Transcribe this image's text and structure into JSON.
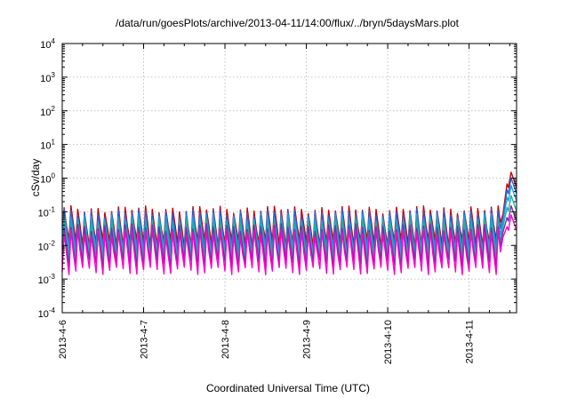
{
  "chart_data": {
    "type": "line",
    "title": "/data/run/goesPlots/archive/2013-04-11/14:00/flux/../bryn/5daysMars.plot",
    "xlabel": "Coordinated Universal Time (UTC)",
    "ylabel": "cSv/day",
    "yscale": "log",
    "ylim": [
      0.0001,
      10000
    ],
    "y_ticks": [
      {
        "base": "10",
        "exp": "-4",
        "value": 0.0001
      },
      {
        "base": "10",
        "exp": "-3",
        "value": 0.001
      },
      {
        "base": "10",
        "exp": "-2",
        "value": 0.01
      },
      {
        "base": "10",
        "exp": "-1",
        "value": 0.1
      },
      {
        "base": "10",
        "exp": "0",
        "value": 1
      },
      {
        "base": "10",
        "exp": "1",
        "value": 10
      },
      {
        "base": "10",
        "exp": "2",
        "value": 100
      },
      {
        "base": "10",
        "exp": "3",
        "value": 1000
      },
      {
        "base": "10",
        "exp": "4",
        "value": 10000
      }
    ],
    "xlim": [
      "2013-04-06 00:00",
      "2013-04-11 14:00"
    ],
    "x_ticks": [
      "2013-4-6",
      "2013-4-7",
      "2013-4-8",
      "2013-4-9",
      "2013-4-10",
      "2013-4-11"
    ],
    "grid": true,
    "legend": "none",
    "pattern": {
      "cycles_per_day": 12,
      "event_start": "2013-04-11 10:00",
      "event_peak_values": [
        1.5,
        1.0,
        0.6,
        0.3,
        0.15,
        0.08
      ]
    },
    "series": [
      {
        "color": "#cc0000",
        "peak": 0.12,
        "trough": 0.012
      },
      {
        "color": "#3060d0",
        "peak": 0.095,
        "trough": 0.008
      },
      {
        "color": "#1aa0e0",
        "peak": 0.07,
        "trough": 0.006
      },
      {
        "color": "#20b0a0",
        "peak": 0.05,
        "trough": 0.0045
      },
      {
        "color": "#7030b0",
        "peak": 0.035,
        "trough": 0.003
      },
      {
        "color": "#ff00cc",
        "peak": 0.025,
        "trough": 0.0018
      }
    ]
  }
}
